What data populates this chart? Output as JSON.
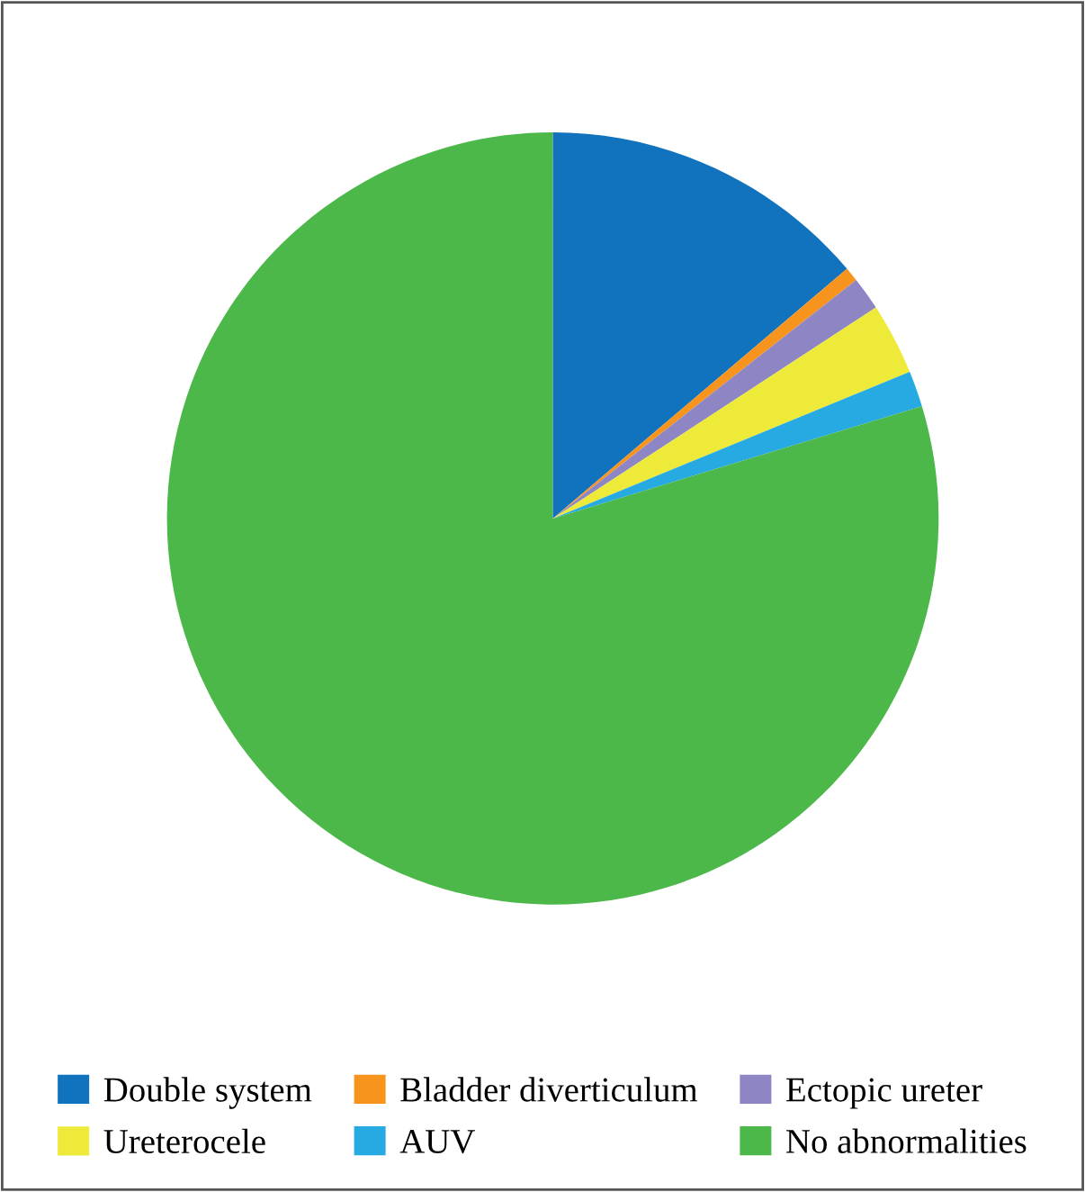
{
  "chart_data": {
    "type": "pie",
    "categories": [
      "Double system",
      "Bladder diverticulum",
      "Ectopic ureter",
      "Ureterocele",
      "AUV",
      "No abnormalities"
    ],
    "values": [
      13.8,
      0.6,
      1.4,
      3.0,
      1.5,
      79.7
    ],
    "colors": [
      "#1172bd",
      "#f7941d",
      "#8e86c4",
      "#eeea3a",
      "#27aae1",
      "#4cb84a"
    ],
    "legend": "bottom"
  }
}
